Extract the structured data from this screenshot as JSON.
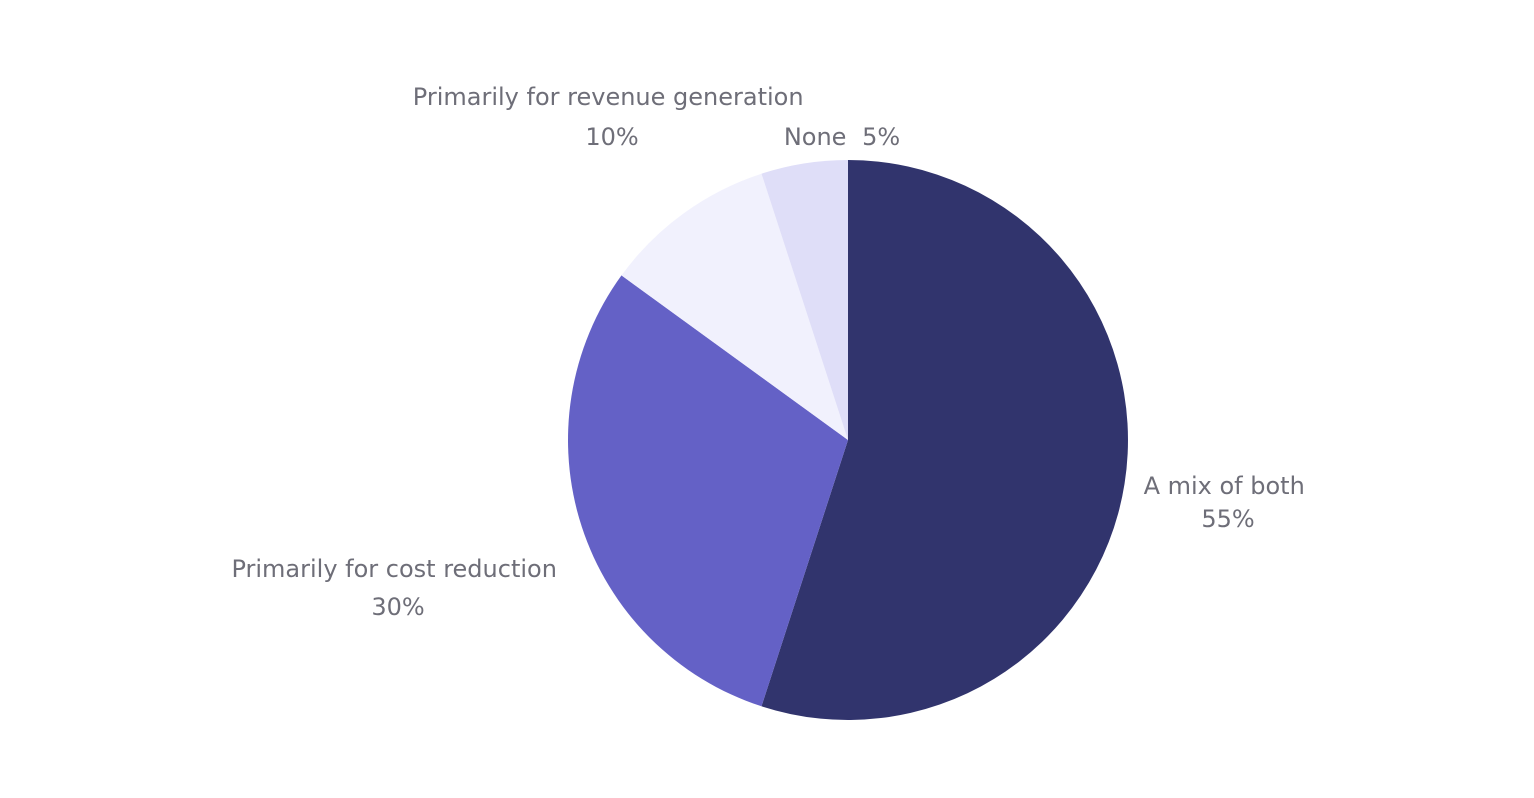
{
  "chart_data": {
    "type": "pie",
    "title": "",
    "slices": [
      {
        "label": "A mix of both",
        "value": 55,
        "value_label": "55%",
        "color": "#31346d"
      },
      {
        "label": "Primarily for cost reduction",
        "value": 30,
        "value_label": "30%",
        "color": "#6461c6"
      },
      {
        "label": "Primarily for revenue generation",
        "value": 10,
        "value_label": "10%",
        "color": "#f1f1fd"
      },
      {
        "label": "None",
        "value": 5,
        "value_label": "5%",
        "color": "#dfdef8"
      }
    ],
    "start_angle": "12 o'clock",
    "direction": "clockwise",
    "legend": "none",
    "label_position": "outside"
  }
}
